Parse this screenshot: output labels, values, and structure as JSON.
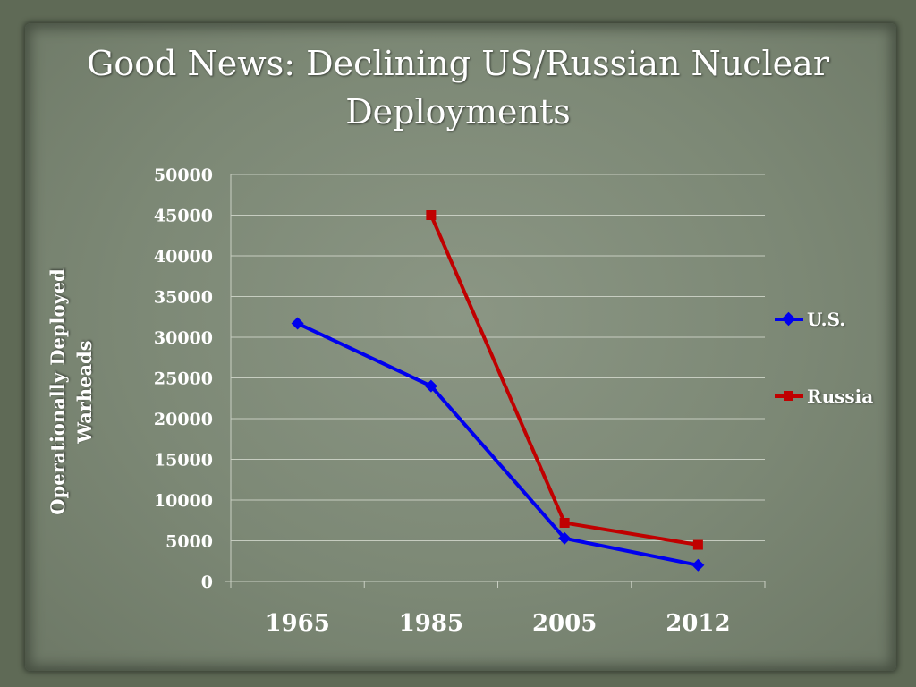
{
  "slide": {
    "title_line1": "Good News:  Declining US/Russian Nuclear",
    "title_line2": "Deployments"
  },
  "chart_data": {
    "type": "line",
    "title": "Good News:  Declining US/Russian Nuclear Deployments",
    "xlabel": "",
    "ylabel_line1": "Operationally Deployed",
    "ylabel_line2": "Warheads",
    "categories": [
      "1965",
      "1985",
      "2005",
      "2012"
    ],
    "yticks": [
      "0",
      "5000",
      "10000",
      "15000",
      "20000",
      "25000",
      "30000",
      "35000",
      "40000",
      "45000",
      "50000"
    ],
    "ylim": [
      0,
      50000
    ],
    "grid": true,
    "legend": "right",
    "series": [
      {
        "name": "U.S.",
        "values": [
          31700,
          24000,
          5300,
          2000
        ],
        "color": "#0000ee",
        "marker": "diamond"
      },
      {
        "name": "Russia",
        "values": [
          null,
          45000,
          7200,
          4500
        ],
        "color": "#c00000",
        "marker": "square"
      }
    ]
  }
}
